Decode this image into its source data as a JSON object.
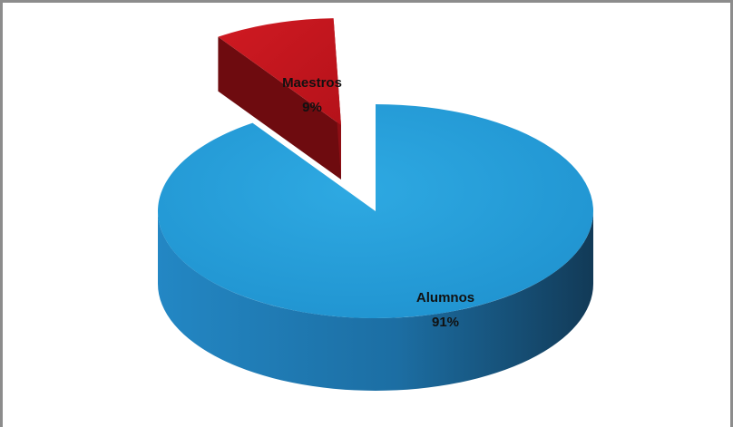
{
  "chart_data": {
    "type": "pie",
    "style": "3d-exploded",
    "categories": [
      "Alumnos",
      "Maestros"
    ],
    "values": [
      91,
      9
    ],
    "labels": [
      {
        "name": "Alumnos",
        "percent": "91%"
      },
      {
        "name": "Maestros",
        "percent": "9%"
      }
    ],
    "title": "",
    "legend": "none",
    "colors": {
      "Alumnos": "#29a3dd",
      "Maestros": "#c0141b"
    }
  }
}
